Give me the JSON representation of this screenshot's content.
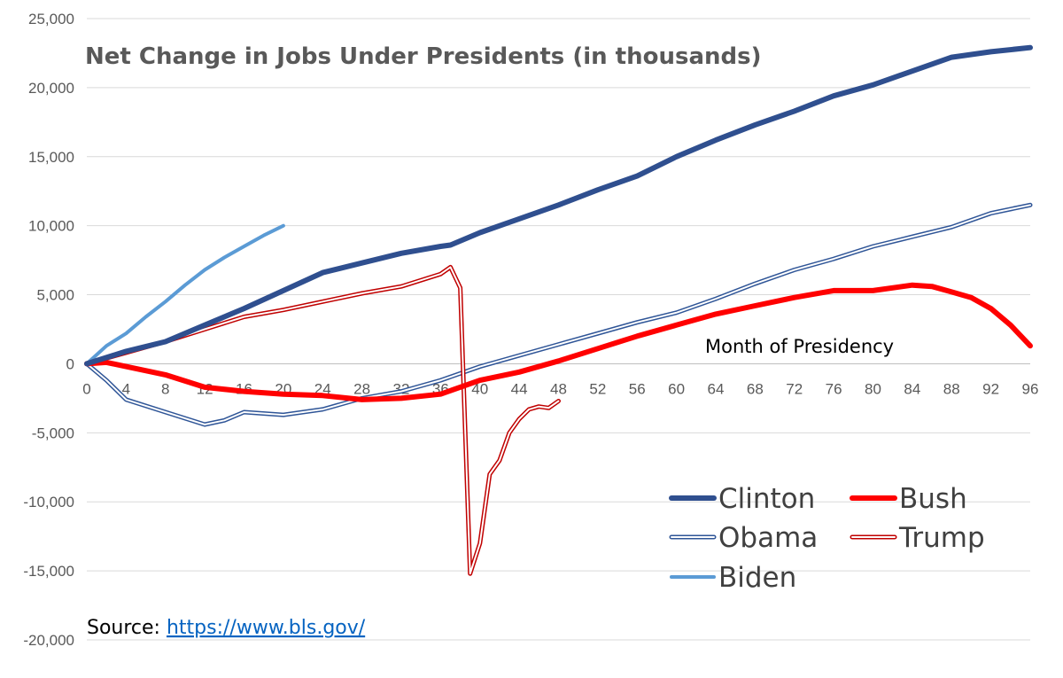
{
  "chart_data": {
    "type": "line",
    "title": "Net Change in Jobs Under Presidents (in thousands)",
    "xlabel": "Month of Presidency",
    "ylabel": "",
    "xlim": [
      0,
      96
    ],
    "ylim": [
      -20000,
      25000
    ],
    "x_ticks": [
      0,
      4,
      8,
      12,
      16,
      20,
      24,
      28,
      32,
      36,
      40,
      44,
      48,
      52,
      56,
      60,
      64,
      68,
      72,
      76,
      80,
      84,
      88,
      92,
      96
    ],
    "y_ticks": [
      -20000,
      -15000,
      -10000,
      -5000,
      0,
      5000,
      10000,
      15000,
      20000,
      25000
    ],
    "y_tick_labels": [
      "-20,000",
      "-15,000",
      "-10,000",
      "-5,000",
      "0",
      "5,000",
      "10,000",
      "15,000",
      "20,000",
      "25,000"
    ],
    "grid": true,
    "legend_position": "bottom-right",
    "series": [
      {
        "name": "Clinton",
        "color": "#2F4F8F",
        "style": "thick",
        "points": [
          [
            0,
            0
          ],
          [
            4,
            900
          ],
          [
            8,
            1600
          ],
          [
            12,
            2800
          ],
          [
            16,
            4000
          ],
          [
            20,
            5300
          ],
          [
            24,
            6600
          ],
          [
            28,
            7300
          ],
          [
            32,
            8000
          ],
          [
            36,
            8500
          ],
          [
            37,
            8600
          ],
          [
            40,
            9500
          ],
          [
            44,
            10500
          ],
          [
            48,
            11500
          ],
          [
            52,
            12600
          ],
          [
            56,
            13600
          ],
          [
            60,
            15000
          ],
          [
            64,
            16200
          ],
          [
            68,
            17300
          ],
          [
            72,
            18300
          ],
          [
            76,
            19400
          ],
          [
            80,
            20200
          ],
          [
            84,
            21200
          ],
          [
            88,
            22200
          ],
          [
            92,
            22600
          ],
          [
            96,
            22900
          ]
        ]
      },
      {
        "name": "Bush",
        "color": "#FF0000",
        "style": "thick",
        "points": [
          [
            0,
            0
          ],
          [
            2,
            100
          ],
          [
            4,
            -200
          ],
          [
            8,
            -800
          ],
          [
            12,
            -1700
          ],
          [
            16,
            -2000
          ],
          [
            20,
            -2200
          ],
          [
            24,
            -2300
          ],
          [
            28,
            -2600
          ],
          [
            32,
            -2500
          ],
          [
            36,
            -2200
          ],
          [
            40,
            -1200
          ],
          [
            44,
            -600
          ],
          [
            48,
            200
          ],
          [
            52,
            1100
          ],
          [
            56,
            2000
          ],
          [
            60,
            2800
          ],
          [
            64,
            3600
          ],
          [
            68,
            4200
          ],
          [
            72,
            4800
          ],
          [
            76,
            5300
          ],
          [
            80,
            5300
          ],
          [
            84,
            5700
          ],
          [
            86,
            5600
          ],
          [
            88,
            5200
          ],
          [
            90,
            4800
          ],
          [
            92,
            4000
          ],
          [
            94,
            2800
          ],
          [
            96,
            1300
          ]
        ]
      },
      {
        "name": "Obama",
        "color": "#2F5597",
        "style": "double",
        "points": [
          [
            0,
            0
          ],
          [
            2,
            -1200
          ],
          [
            4,
            -2600
          ],
          [
            8,
            -3500
          ],
          [
            12,
            -4400
          ],
          [
            14,
            -4100
          ],
          [
            16,
            -3500
          ],
          [
            20,
            -3700
          ],
          [
            24,
            -3300
          ],
          [
            28,
            -2500
          ],
          [
            32,
            -2000
          ],
          [
            36,
            -1200
          ],
          [
            40,
            -200
          ],
          [
            44,
            600
          ],
          [
            48,
            1400
          ],
          [
            52,
            2200
          ],
          [
            56,
            3000
          ],
          [
            60,
            3700
          ],
          [
            64,
            4700
          ],
          [
            68,
            5800
          ],
          [
            72,
            6800
          ],
          [
            76,
            7600
          ],
          [
            80,
            8500
          ],
          [
            84,
            9200
          ],
          [
            88,
            9900
          ],
          [
            92,
            10900
          ],
          [
            96,
            11500
          ]
        ]
      },
      {
        "name": "Trump",
        "color": "#C00000",
        "style": "double",
        "points": [
          [
            0,
            0
          ],
          [
            4,
            800
          ],
          [
            8,
            1600
          ],
          [
            12,
            2500
          ],
          [
            16,
            3400
          ],
          [
            20,
            3900
          ],
          [
            24,
            4500
          ],
          [
            28,
            5100
          ],
          [
            32,
            5600
          ],
          [
            36,
            6500
          ],
          [
            37,
            7000
          ],
          [
            38,
            5500
          ],
          [
            39,
            -15200
          ],
          [
            40,
            -13000
          ],
          [
            41,
            -8000
          ],
          [
            42,
            -7000
          ],
          [
            43,
            -5000
          ],
          [
            44,
            -4000
          ],
          [
            45,
            -3300
          ],
          [
            46,
            -3100
          ],
          [
            47,
            -3200
          ],
          [
            48,
            -2700
          ]
        ]
      },
      {
        "name": "Biden",
        "color": "#5B9BD5",
        "style": "single",
        "points": [
          [
            0,
            0
          ],
          [
            2,
            1300
          ],
          [
            4,
            2200
          ],
          [
            6,
            3400
          ],
          [
            8,
            4500
          ],
          [
            10,
            5700
          ],
          [
            12,
            6800
          ],
          [
            14,
            7700
          ],
          [
            16,
            8500
          ],
          [
            18,
            9300
          ],
          [
            20,
            10000
          ]
        ]
      }
    ],
    "annotations": [
      {
        "text_prefix": "Source: ",
        "link_text": "https://www.bls.gov/"
      }
    ]
  }
}
